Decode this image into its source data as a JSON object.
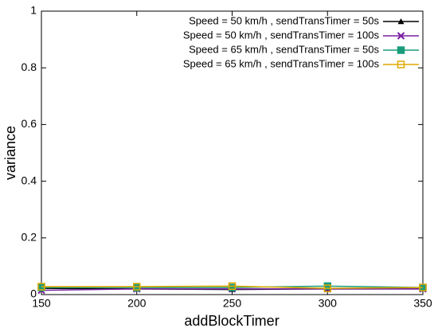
{
  "chart_data": {
    "type": "line",
    "x_label": "addBlockTimer",
    "y_label": "variance",
    "x": [
      150,
      200,
      250,
      300,
      350
    ],
    "xlim": [
      150,
      350
    ],
    "xticks": [
      150,
      200,
      250,
      300,
      350
    ],
    "ylim": [
      0,
      1
    ],
    "yticks": [
      0,
      0.2,
      0.4,
      0.6,
      0.8,
      1
    ],
    "legend": "top-right",
    "series": [
      {
        "name": "Speed = 50 km/h , sendTransTimer = 50s",
        "color": "#000000",
        "marker": "triangle",
        "values": [
          0.022,
          0.02,
          0.018,
          0.02,
          0.02
        ]
      },
      {
        "name": "Speed = 50 km/h , sendTransTimer = 100s",
        "color": "#7b1fa2",
        "marker": "cross",
        "values": [
          0.015,
          0.02,
          0.02,
          0.02,
          0.02
        ]
      },
      {
        "name": "Speed = 65 km/h , sendTransTimer = 50s",
        "color": "#1a9c7c",
        "marker": "boxx",
        "values": [
          0.025,
          0.025,
          0.025,
          0.03,
          0.025
        ]
      },
      {
        "name": "Speed = 65 km/h , sendTransTimer = 100s",
        "color": "#e0a800",
        "marker": "square",
        "values": [
          0.028,
          0.028,
          0.03,
          0.022,
          0.025
        ]
      }
    ]
  }
}
